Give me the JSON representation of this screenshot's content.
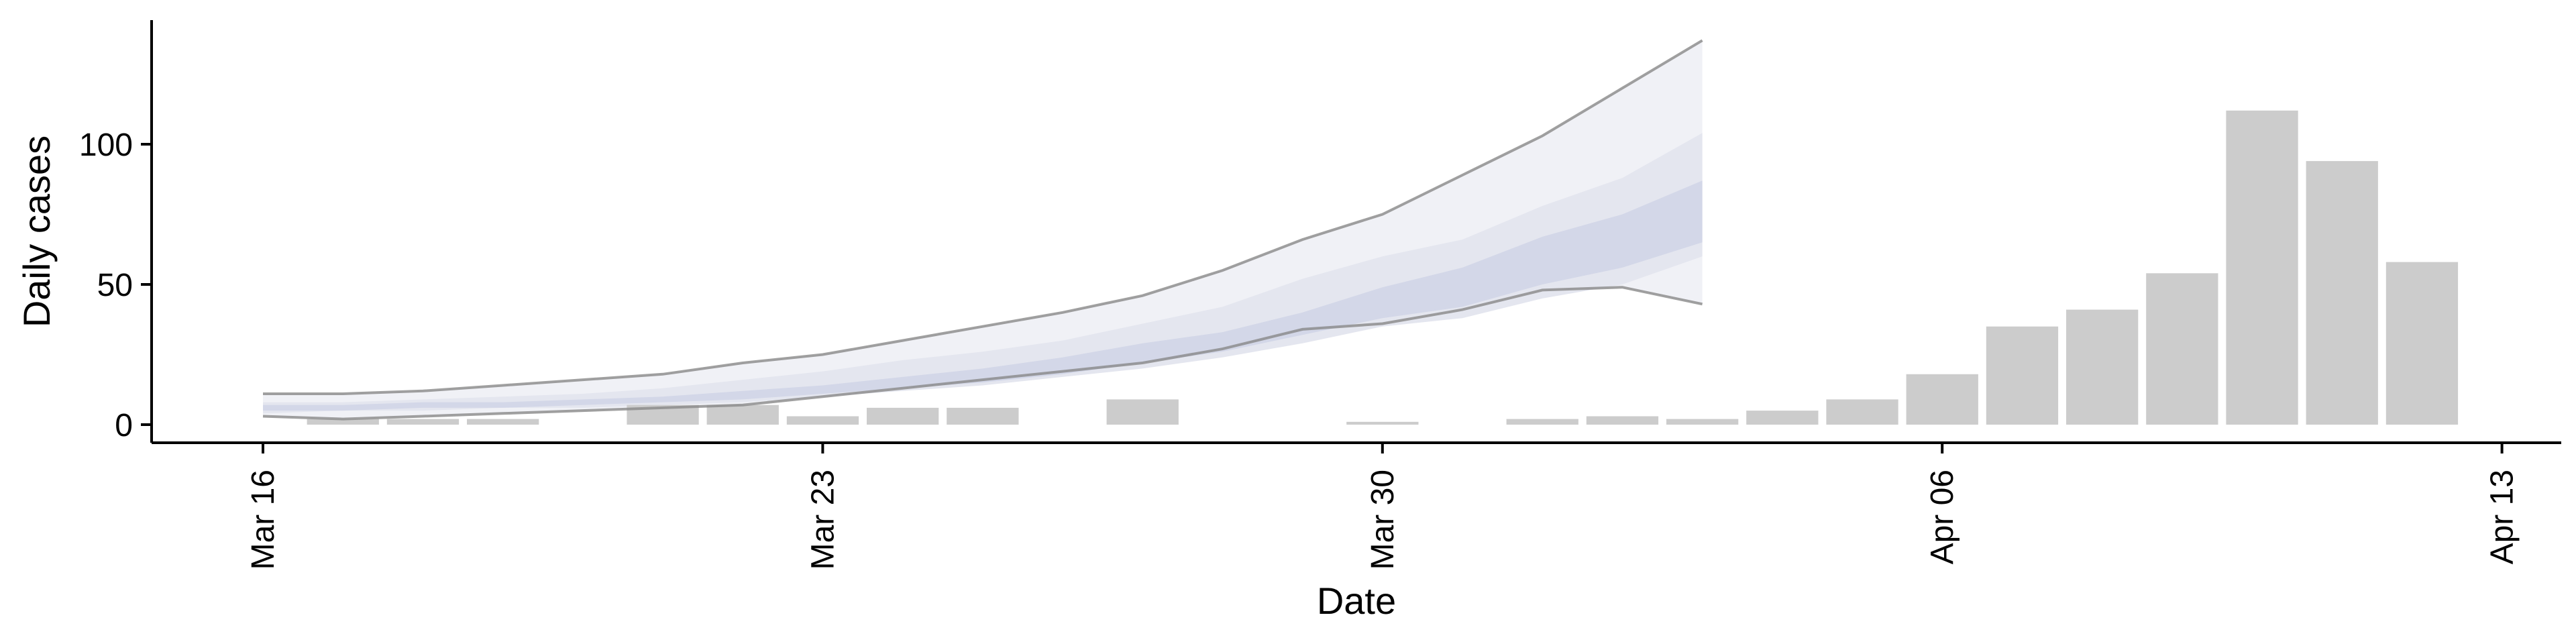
{
  "chart_data": {
    "type": "bar",
    "title": "",
    "xlabel": "Date",
    "ylabel": "Daily cases",
    "ylim": [
      -6,
      145
    ],
    "xlim": [
      "2020-03-16",
      "2020-04-13"
    ],
    "y_ticks": [
      0,
      50,
      100
    ],
    "x_ticks": [
      {
        "date": "2020-03-16",
        "label": "Mar 16"
      },
      {
        "date": "2020-03-23",
        "label": "Mar 23"
      },
      {
        "date": "2020-03-30",
        "label": "Mar 30"
      },
      {
        "date": "2020-04-06",
        "label": "Apr 06"
      },
      {
        "date": "2020-04-13",
        "label": "Apr 13"
      }
    ],
    "grid": false,
    "legend": "none",
    "colors": {
      "bars": "#cccccc",
      "band_outer": "#f0f1f6",
      "band_mid": "#e4e6ef",
      "band_inner": "#d3d7e8",
      "band_line": "#888888"
    },
    "daily_cases": {
      "dates": [
        "2020-03-16",
        "2020-03-17",
        "2020-03-18",
        "2020-03-19",
        "2020-03-20",
        "2020-03-21",
        "2020-03-22",
        "2020-03-23",
        "2020-03-24",
        "2020-03-25",
        "2020-03-26",
        "2020-03-27",
        "2020-03-28",
        "2020-03-29",
        "2020-03-30",
        "2020-03-31",
        "2020-04-01",
        "2020-04-02",
        "2020-04-03",
        "2020-04-04",
        "2020-04-05",
        "2020-04-06",
        "2020-04-07",
        "2020-04-08",
        "2020-04-09",
        "2020-04-10",
        "2020-04-11",
        "2020-04-12"
      ],
      "values": [
        0,
        2,
        2,
        2,
        0,
        7,
        7,
        3,
        6,
        6,
        0,
        9,
        0,
        0,
        1,
        0,
        2,
        3,
        2,
        5,
        9,
        18,
        35,
        41,
        54,
        112,
        94,
        58
      ]
    },
    "projection": {
      "dates": [
        "2020-03-16",
        "2020-03-17",
        "2020-03-18",
        "2020-03-19",
        "2020-03-20",
        "2020-03-21",
        "2020-03-22",
        "2020-03-23",
        "2020-03-24",
        "2020-03-25",
        "2020-03-26",
        "2020-03-27",
        "2020-03-28",
        "2020-03-29",
        "2020-03-30",
        "2020-03-31",
        "2020-04-01",
        "2020-04-02",
        "2020-04-03"
      ],
      "upper_90": [
        11,
        11,
        12,
        14,
        16,
        18,
        22,
        25,
        30,
        35,
        40,
        46,
        55,
        66,
        75,
        89,
        103,
        120,
        137
      ],
      "upper_50": [
        8,
        8,
        9,
        10,
        11,
        13,
        16,
        19,
        23,
        26,
        30,
        36,
        42,
        52,
        60,
        66,
        78,
        88,
        104
      ],
      "upper_20": [
        7,
        7,
        8,
        8,
        9,
        10,
        12,
        14,
        17,
        20,
        24,
        29,
        33,
        40,
        49,
        56,
        67,
        75,
        87
      ],
      "lower_20": [
        5,
        5,
        6,
        6,
        7,
        8,
        9,
        11,
        13,
        15,
        18,
        22,
        26,
        32,
        38,
        42,
        50,
        56,
        65
      ],
      "lower_50": [
        4,
        5,
        5,
        6,
        6,
        7,
        8,
        10,
        12,
        14,
        17,
        20,
        24,
        29,
        35,
        38,
        45,
        50,
        60
      ],
      "lower_90": [
        3,
        2,
        3,
        4,
        5,
        6,
        7,
        10,
        13,
        16,
        19,
        22,
        27,
        34,
        36,
        41,
        48,
        49,
        43
      ]
    }
  }
}
